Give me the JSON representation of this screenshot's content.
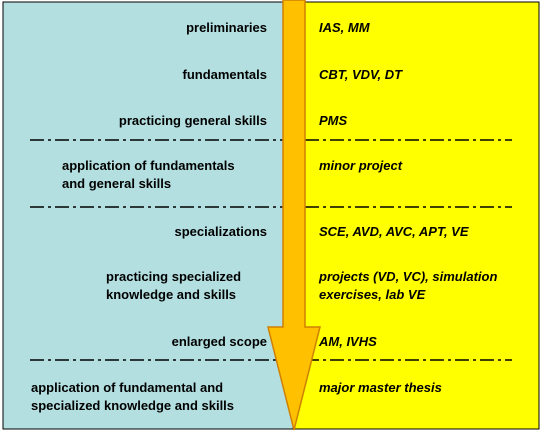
{
  "colors": {
    "left_panel": "#b3dfe0",
    "right_panel": "#ffff00",
    "arrow_fill": "#ffc000",
    "arrow_stroke": "#d08000",
    "separator": "#000000"
  },
  "rows": [
    {
      "stage": [
        "preliminaries"
      ],
      "courses": [
        "IAS, MM"
      ]
    },
    {
      "stage": [
        "fundamentals"
      ],
      "courses": [
        "CBT, VDV, DT"
      ]
    },
    {
      "stage": [
        "practicing general skills"
      ],
      "courses": [
        "PMS"
      ]
    },
    {
      "stage": [
        "application of fundamentals",
        "and general skills"
      ],
      "courses": [
        "minor project"
      ]
    },
    {
      "stage": [
        "specializations"
      ],
      "courses": [
        "SCE, AVD, AVC, APT, VE"
      ]
    },
    {
      "stage": [
        "practicing specialized",
        "knowledge and skills"
      ],
      "courses": [
        "projects (VD, VC), simulation",
        "exercises, lab VE"
      ]
    },
    {
      "stage": [
        "enlarged scope"
      ],
      "courses": [
        "AM, IVHS"
      ]
    },
    {
      "stage": [
        "application of fundamental and",
        "specialized knowledge and skills"
      ],
      "courses": [
        "major master thesis"
      ]
    }
  ]
}
